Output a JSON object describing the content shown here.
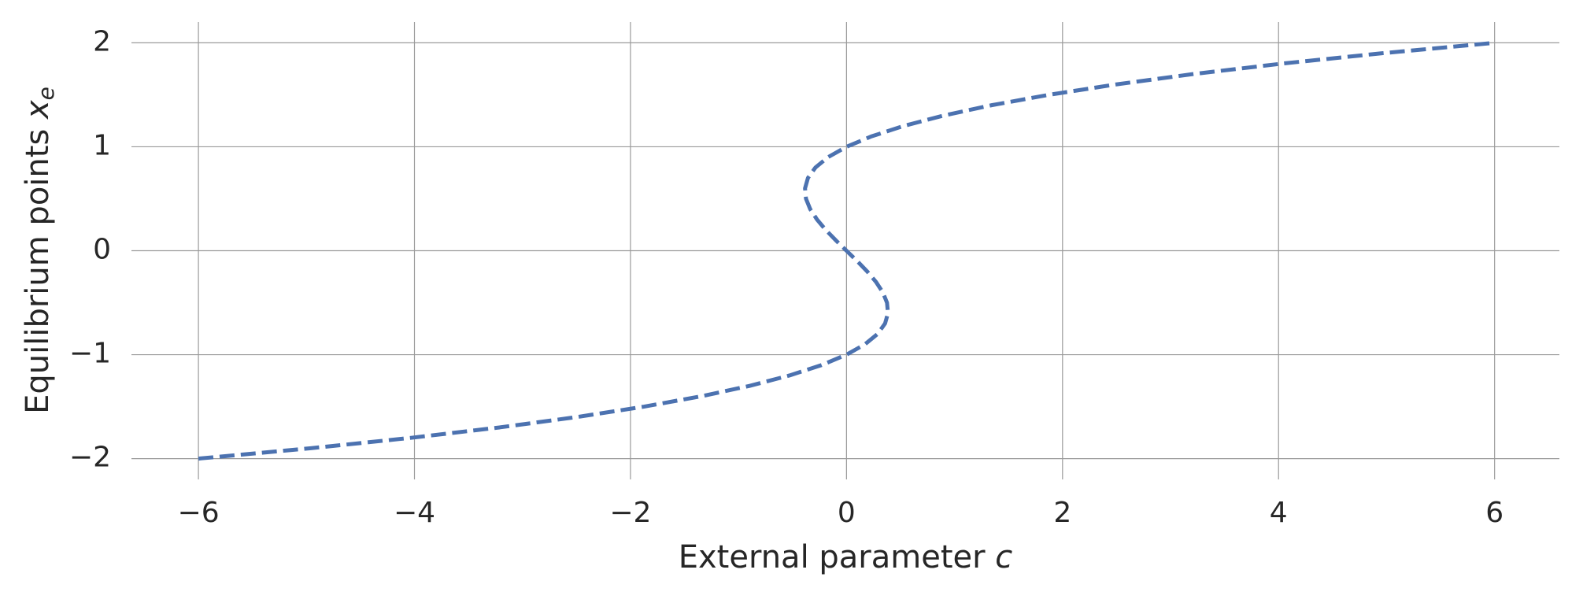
{
  "chart_data": {
    "type": "line",
    "x_label": {
      "text": "External parameter",
      "symbol": "c"
    },
    "y_label": {
      "text": "Equilibrium points",
      "symbol": "x",
      "subscript": "e"
    },
    "x": [
      -6,
      -4.959,
      -4.032,
      -3.213,
      -2.496,
      -1.875,
      -1.344,
      -0.897,
      -0.528,
      -0.231,
      0,
      0.171,
      0.288,
      0.357,
      0.384,
      0.375,
      0.336,
      0.273,
      0.192,
      0.099,
      0,
      -0.099,
      -0.192,
      -0.273,
      -0.336,
      -0.375,
      -0.384,
      -0.357,
      -0.288,
      -0.171,
      0,
      0.231,
      0.528,
      0.897,
      1.344,
      1.875,
      2.496,
      3.213,
      4.032,
      4.959,
      6
    ],
    "series": [
      {
        "color": "#4c72b0",
        "style": "dashed",
        "values": [
          -2,
          -1.9,
          -1.8,
          -1.7,
          -1.6,
          -1.5,
          -1.4,
          -1.3,
          -1.2,
          -1.1,
          -1,
          -0.9,
          -0.8,
          -0.7,
          -0.6,
          -0.5,
          -0.4,
          -0.3,
          -0.2,
          -0.1,
          0,
          0.1,
          0.2,
          0.3,
          0.4,
          0.5,
          0.6,
          0.7,
          0.8,
          0.9,
          1,
          1.1,
          1.2,
          1.3,
          1.4,
          1.5,
          1.6,
          1.7,
          1.8,
          1.9,
          2
        ]
      }
    ],
    "xlim": [
      -6.62,
      6.6
    ],
    "ylim": [
      -2.2,
      2.2
    ],
    "xticks": [
      {
        "value": -6,
        "label": "−6"
      },
      {
        "value": -4,
        "label": "−4"
      },
      {
        "value": -2,
        "label": "−2"
      },
      0,
      2,
      4,
      6
    ],
    "yticks": [
      {
        "value": -2,
        "label": "−2"
      },
      {
        "value": -1,
        "label": "−1"
      },
      0,
      1,
      2
    ],
    "grid": true
  }
}
